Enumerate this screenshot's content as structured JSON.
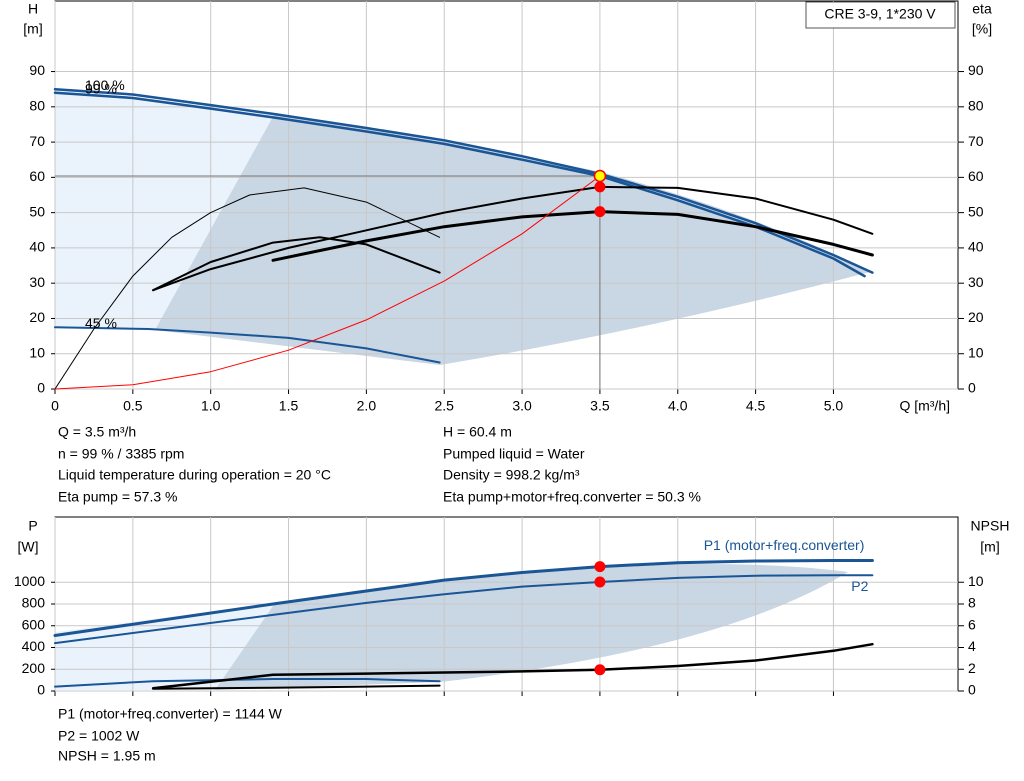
{
  "chart_data": [
    {
      "type": "line",
      "title": "CRE 3-9, 1*230 V",
      "y_label": "H",
      "y_unit": "[m]",
      "y2_label": "eta",
      "y2_unit": "[%]",
      "x_label": "Q [m³/h]",
      "xlim": [
        0,
        5.8
      ],
      "xticks": [
        0,
        0.5,
        {
          "value": 1,
          "label": "1.0"
        },
        1.5,
        {
          "value": 2,
          "label": "2.0"
        },
        2.5,
        {
          "value": 3,
          "label": "3.0"
        },
        3.5,
        {
          "value": 4,
          "label": "4.0"
        },
        4.5,
        {
          "value": 5,
          "label": "5.0"
        }
      ],
      "ylim": [
        0,
        110
      ],
      "yticks": [
        0,
        10,
        20,
        30,
        40,
        50,
        60,
        70,
        80,
        90
      ],
      "y2lim": [
        0,
        110
      ],
      "y2ticks": [
        0,
        10,
        20,
        30,
        40,
        50,
        60,
        70,
        80,
        90
      ],
      "grid": true,
      "series": [
        {
          "name": "100 %",
          "color": "#1a5596",
          "width": 2.5,
          "x": [
            0,
            0.5,
            1,
            1.4,
            2,
            2.5,
            3,
            3.5,
            4,
            4.5,
            5,
            5.25
          ],
          "values": [
            85,
            83.5,
            80.5,
            78,
            74,
            70.5,
            66,
            61,
            54.5,
            47,
            38,
            33
          ]
        },
        {
          "name": "99 %",
          "color": "#1a5596",
          "width": 2.5,
          "x": [
            0,
            0.5,
            1,
            1.4,
            2,
            2.5,
            3,
            3.5,
            4,
            4.5,
            5,
            5.2
          ],
          "values": [
            84,
            82.5,
            79.5,
            77,
            73,
            69.5,
            65,
            60.4,
            53.5,
            46,
            37,
            32
          ]
        },
        {
          "name": "45 %",
          "color": "#1a5596",
          "width": 2,
          "x": [
            0,
            0.6,
            1,
            1.5,
            2,
            2.47
          ],
          "values": [
            17.5,
            17,
            16,
            14.5,
            11.5,
            7.5
          ]
        },
        {
          "color": "#000000",
          "width": 2,
          "axis": "y2",
          "x": [
            0.63,
            1,
            1.5,
            2,
            2.5,
            3,
            3.5,
            4,
            4.5,
            5,
            5.25
          ],
          "values": [
            28,
            34,
            40,
            45,
            50,
            54,
            57.3,
            57,
            54,
            48,
            44
          ]
        },
        {
          "color": "#000000",
          "width": 3,
          "axis": "y2",
          "x": [
            1.4,
            2,
            2.5,
            3,
            3.5,
            4,
            4.5,
            5,
            5.25
          ],
          "values": [
            36.5,
            42,
            46,
            48.8,
            50.3,
            49.5,
            46,
            41,
            38
          ]
        },
        {
          "color": "#000000",
          "width": 1,
          "axis": "y2",
          "x": [
            0,
            0.25,
            0.5,
            0.75,
            1,
            1.25,
            1.6,
            2,
            2.47
          ],
          "values": [
            0,
            17,
            32,
            43,
            50,
            55,
            57,
            53,
            43
          ]
        },
        {
          "color": "#000000",
          "width": 2,
          "axis": "y2",
          "x": [
            0.63,
            1,
            1.4,
            1.7,
            2,
            2.47
          ],
          "values": [
            28,
            36,
            41.5,
            43,
            41,
            33
          ]
        },
        {
          "color": "#ff0000",
          "width": 1,
          "x": [
            0,
            0.5,
            1,
            1.5,
            2,
            2.5,
            3,
            3.5
          ],
          "values": [
            0,
            1.2,
            4.9,
            11,
            19.6,
            30.6,
            44,
            60.4
          ]
        }
      ],
      "markers": [
        {
          "x": 3.5,
          "y": 60.4,
          "color": "#ffff00"
        },
        {
          "x": 3.5,
          "y": 57.3,
          "color": "#ff0000"
        },
        {
          "x": 3.5,
          "y": 50.3,
          "color": "#ff0000"
        }
      ]
    },
    {
      "type": "line",
      "y_label": "P",
      "y_unit": "[W]",
      "y2_label": "NPSH",
      "y2_unit": "[m]",
      "xlim": [
        0,
        5.8
      ],
      "xticks": [
        0,
        0.5,
        1,
        1.5,
        2,
        2.5,
        3,
        3.5,
        4,
        4.5,
        5
      ],
      "ylim": [
        0,
        1600
      ],
      "yticks": [
        0,
        200,
        400,
        600,
        800,
        1000
      ],
      "y2lim": [
        0,
        16
      ],
      "y2ticks": [
        0,
        2,
        4,
        6,
        8,
        10
      ],
      "grid": true,
      "series": [
        {
          "name": "P1 (motor+freq.converter)",
          "color": "#1a5596",
          "width": 3,
          "x": [
            0,
            1.4,
            2,
            2.5,
            3,
            3.5,
            4,
            4.5,
            5,
            5.25
          ],
          "values": [
            510,
            800,
            920,
            1020,
            1090,
            1144,
            1180,
            1195,
            1200,
            1200
          ]
        },
        {
          "name": "P2",
          "color": "#1a5596",
          "width": 2,
          "x": [
            0,
            1.4,
            2,
            2.5,
            3,
            3.5,
            4,
            4.5,
            5,
            5.25
          ],
          "values": [
            440,
            700,
            810,
            890,
            960,
            1002,
            1040,
            1060,
            1065,
            1065
          ]
        },
        {
          "color": "#1a5596",
          "width": 2,
          "x": [
            0,
            0.63,
            1.4,
            2,
            2.47
          ],
          "values": [
            40,
            90,
            110,
            110,
            90
          ]
        },
        {
          "color": "#000000",
          "width": 2.5,
          "axis": "y2",
          "x": [
            0.63,
            1.4,
            2,
            2.5,
            3,
            3.5,
            4,
            4.5,
            5,
            5.25
          ],
          "values": [
            0.25,
            1.5,
            1.6,
            1.7,
            1.8,
            1.95,
            2.3,
            2.8,
            3.7,
            4.3
          ]
        },
        {
          "color": "#000000",
          "width": 2,
          "axis": "y2",
          "x": [
            0.63,
            1.4,
            2,
            2.47
          ],
          "values": [
            0.2,
            0.3,
            0.4,
            0.5
          ]
        }
      ],
      "markers": [
        {
          "x": 3.5,
          "y": 1144,
          "color": "#ff0000"
        },
        {
          "x": 3.5,
          "y": 1002,
          "color": "#ff0000"
        },
        {
          "x": 3.5,
          "y": 1.95,
          "color": "#ff0000",
          "axis": "y2"
        }
      ]
    }
  ],
  "info": {
    "left": [
      "Q = 3.5 m³/h",
      "n = 99 % / 3385 rpm",
      "Liquid temperature during operation = 20 °C",
      "Eta pump = 57.3 %"
    ],
    "right": [
      "H = 60.4 m",
      "Pumped liquid = Water",
      "Density = 998.2 kg/m³",
      "Eta pump+motor+freq.converter = 50.3 %"
    ]
  },
  "bottom_info": [
    "P1 (motor+freq.converter) = 1144 W",
    "P2 = 1002 W",
    "NPSH = 1.95 m"
  ]
}
